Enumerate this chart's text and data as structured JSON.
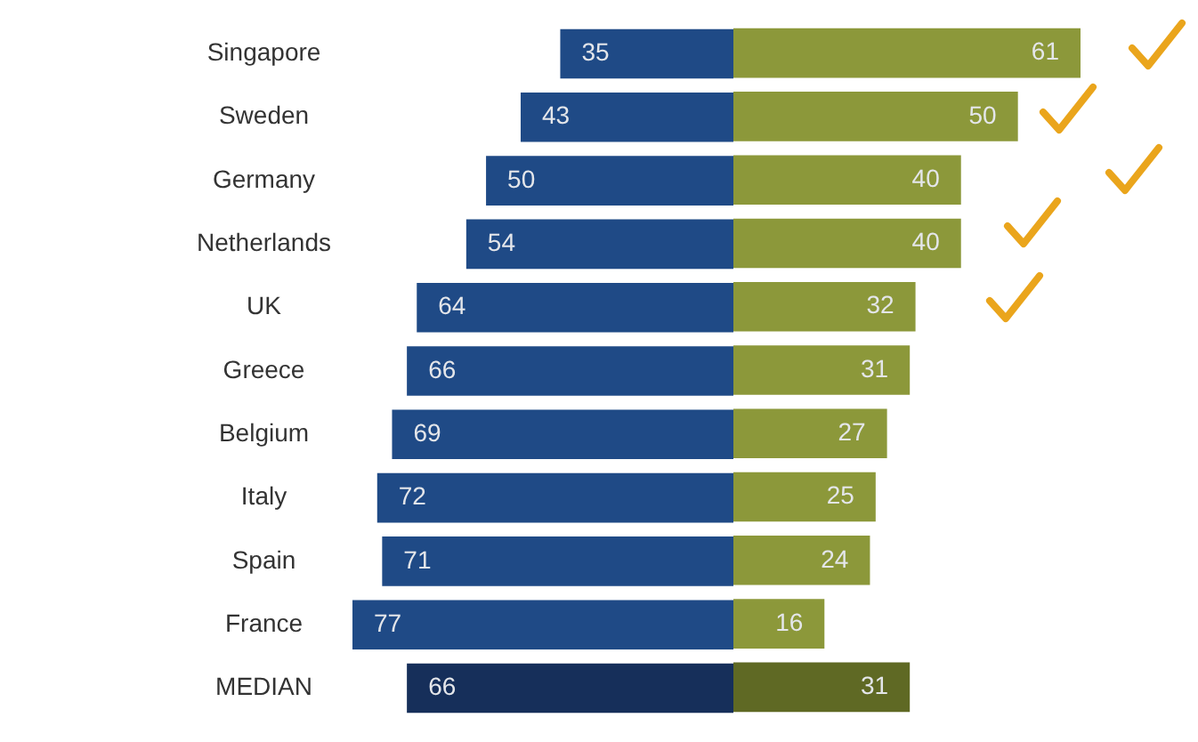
{
  "chart_data": [
    {
      "type": "bar",
      "orientation": "horizontal",
      "tick_labels": "y",
      "categories": [
        "Singapore",
        "Sweden",
        "Germany",
        "Netherlands",
        "UK",
        "Greece",
        "Belgium",
        "Italy",
        "Spain",
        "France",
        "MEDIAN"
      ],
      "series": [
        {
          "colors": [
            "#1f4a86",
            "#1f4a86",
            "#1f4a86",
            "#1f4a86",
            "#1f4a86",
            "#1f4a86",
            "#1f4a86",
            "#1f4a86",
            "#1f4a86",
            "#1f4a86",
            "#162f5a"
          ],
          "values": [
            35,
            43,
            50,
            54,
            64,
            66,
            69,
            72,
            71,
            77,
            66
          ]
        }
      ],
      "data_labels": true
    },
    {
      "type": "bar",
      "orientation": "horizontal",
      "tick_labels": false,
      "categories": [
        null,
        null,
        null,
        null,
        null,
        null,
        null,
        null,
        null,
        null,
        null
      ],
      "series": [
        {
          "colors": [
            "#8c983a",
            "#8c983a",
            "#8c983a",
            "#8c983a",
            "#8c983a",
            "#8c983a",
            "#8c983a",
            "#8c983a",
            "#8c983a",
            "#8c983a",
            "#5f6924"
          ],
          "values": [
            61,
            50,
            40,
            40,
            32,
            31,
            27,
            25,
            24,
            16,
            31
          ]
        }
      ],
      "data_labels": true
    }
  ]
}
